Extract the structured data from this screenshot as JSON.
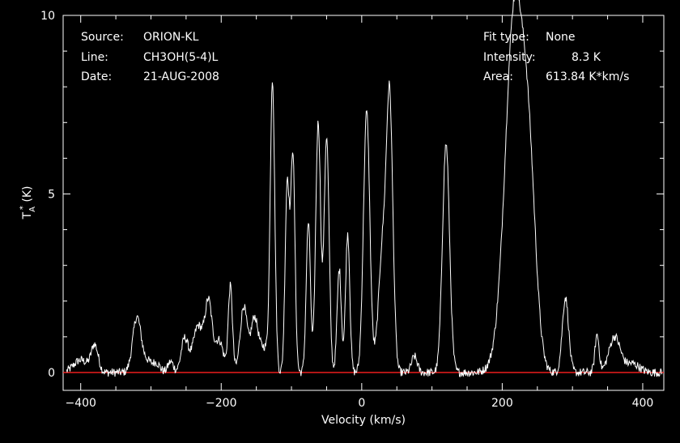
{
  "chart_data": {
    "type": "line",
    "xlabel": "Velocity (km/s)",
    "ylabel": "T_A^* (K)",
    "ylabel_main": "T",
    "ylabel_sub": "A",
    "ylabel_sup": "*",
    "ylabel_unit": " (K)",
    "xlim": [
      -425,
      430
    ],
    "ylim": [
      -0.5,
      10
    ],
    "x_ticks": [
      -400,
      -200,
      0,
      200,
      400
    ],
    "x_tick_labels": [
      "−400",
      "−200",
      "0",
      "200",
      "400"
    ],
    "y_ticks": [
      0,
      5,
      10
    ],
    "y_tick_labels": [
      "0",
      "5",
      "10"
    ],
    "info_left": [
      {
        "key": "Source:",
        "value": "ORION-KL"
      },
      {
        "key": "Line:",
        "value": "CH3OH(5-4)L"
      },
      {
        "key": "Date:",
        "value": "21-AUG-2008"
      }
    ],
    "info_right": [
      {
        "key": "Fit type:",
        "value": "None"
      },
      {
        "key": "Intensity:",
        "value": "8.3 K"
      },
      {
        "key": "Area:",
        "value": "613.84 K*km/s"
      }
    ],
    "baseline": {
      "y": 0,
      "color": "#ff2020"
    },
    "line_color": "#ffffff",
    "noise_amplitude": 0.12,
    "series": [
      {
        "peaks": [
          {
            "center": -400,
            "height": 0.35,
            "width": 10
          },
          {
            "center": -380,
            "height": 0.75,
            "width": 5
          },
          {
            "center": -320,
            "height": 1.55,
            "width": 6
          },
          {
            "center": -305,
            "height": 0.3,
            "width": 6
          },
          {
            "center": -292,
            "height": 0.25,
            "width": 5
          },
          {
            "center": -272,
            "height": 0.3,
            "width": 4
          },
          {
            "center": -252,
            "height": 0.95,
            "width": 5
          },
          {
            "center": -233,
            "height": 1.3,
            "width": 7
          },
          {
            "center": -218,
            "height": 1.9,
            "width": 5
          },
          {
            "center": -203,
            "height": 0.9,
            "width": 6
          },
          {
            "center": -187,
            "height": 2.4,
            "width": 3
          },
          {
            "center": -168,
            "height": 1.85,
            "width": 5
          },
          {
            "center": -153,
            "height": 1.4,
            "width": 5
          },
          {
            "center": -139,
            "height": 0.7,
            "width": 8
          },
          {
            "center": -127,
            "height": 8.0,
            "width": 3.2
          },
          {
            "center": -106,
            "height": 5.3,
            "width": 3
          },
          {
            "center": -98,
            "height": 6.1,
            "width": 3
          },
          {
            "center": -76,
            "height": 4.2,
            "width": 3
          },
          {
            "center": -62,
            "height": 7.0,
            "width": 3.5
          },
          {
            "center": -50,
            "height": 6.6,
            "width": 3.5
          },
          {
            "center": -32,
            "height": 2.9,
            "width": 3
          },
          {
            "center": -20,
            "height": 3.9,
            "width": 3
          },
          {
            "center": 7,
            "height": 7.3,
            "width": 4.5
          },
          {
            "center": 30,
            "height": 3.5,
            "width": 6
          },
          {
            "center": 40,
            "height": 7.1,
            "width": 4.5
          },
          {
            "center": 75,
            "height": 0.45,
            "width": 4
          },
          {
            "center": 120,
            "height": 6.4,
            "width": 5
          },
          {
            "center": 218,
            "height": 8.2,
            "width": 12
          },
          {
            "center": 238,
            "height": 5.2,
            "width": 10
          },
          {
            "center": 210,
            "height": 2.0,
            "width": 14
          },
          {
            "center": 290,
            "height": 2.1,
            "width": 4.5
          },
          {
            "center": 335,
            "height": 1.05,
            "width": 3
          },
          {
            "center": 360,
            "height": 1.0,
            "width": 8
          },
          {
            "center": 385,
            "height": 0.25,
            "width": 10
          }
        ]
      }
    ]
  }
}
